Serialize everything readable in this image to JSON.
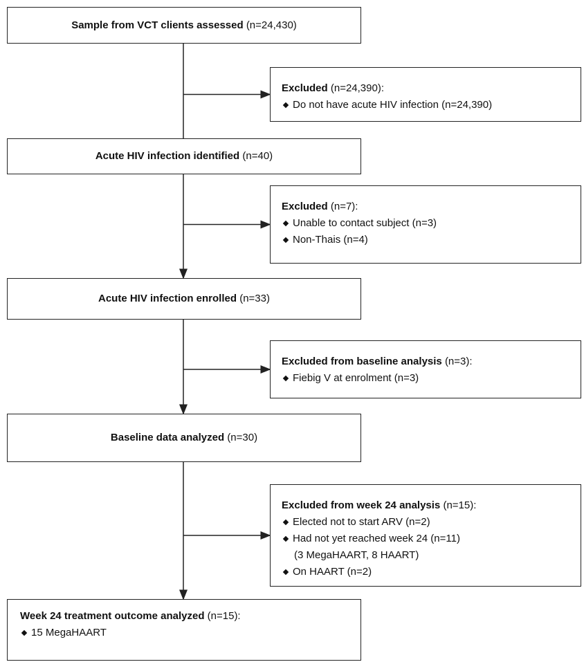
{
  "main_boxes": [
    {
      "title": "Sample from VCT clients assessed",
      "count": "(n=24,430)"
    },
    {
      "title": "Acute HIV infection identified",
      "count": "(n=40)"
    },
    {
      "title": "Acute HIV infection enrolled",
      "count": "(n=33)"
    },
    {
      "title": "Baseline data analyzed",
      "count": "(n=30)"
    },
    {
      "title": "Week 24 treatment outcome analyzed",
      "count": "(n=15):",
      "bullets": [
        {
          "lines": [
            "15 MegaHAART"
          ]
        }
      ]
    }
  ],
  "exclusion_boxes": [
    {
      "title": "Excluded",
      "count": "(n=24,390):",
      "bullets": [
        {
          "lines": [
            "Do not have acute HIV infection (n=24,390)"
          ]
        }
      ]
    },
    {
      "title": "Excluded",
      "count": "(n=7):",
      "bullets": [
        {
          "lines": [
            "Unable to contact subject (n=3)"
          ]
        },
        {
          "lines": [
            "Non-Thais (n=4)"
          ]
        }
      ]
    },
    {
      "title": "Excluded from baseline analysis",
      "count": "(n=3):",
      "bullets": [
        {
          "lines": [
            "Fiebig V at enrolment (n=3)"
          ]
        }
      ]
    },
    {
      "title": "Excluded from week 24 analysis",
      "count": "(n=15):",
      "bullets": [
        {
          "lines": [
            "Elected not to start ARV (n=2)"
          ]
        },
        {
          "lines": [
            "Had not yet reached week 24 (n=11)",
            "(3 MegaHAART, 8 HAART)"
          ]
        },
        {
          "lines": [
            "On HAART (n=2)"
          ]
        }
      ]
    }
  ]
}
